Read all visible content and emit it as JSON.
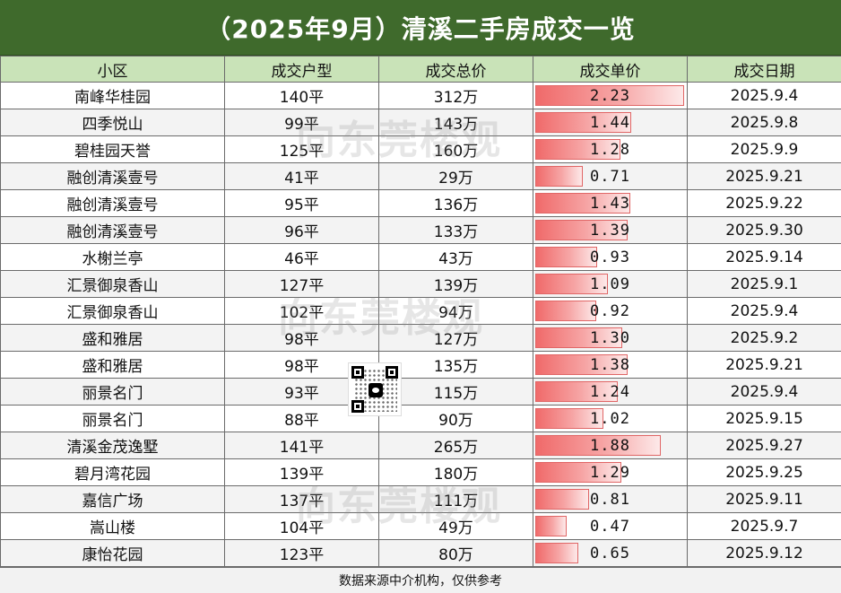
{
  "title": "（2025年9月）清溪二手房成交一览",
  "headers": [
    "小区",
    "成交户型",
    "成交总价",
    "成交单价",
    "成交日期"
  ],
  "unit_scale_max": 2.23,
  "rows": [
    {
      "community": "南峰华桂园",
      "size": "140平",
      "total": "312万",
      "unit": "2.23",
      "unit_num": 2.23,
      "date": "2025.9.4"
    },
    {
      "community": "四季悦山",
      "size": "99平",
      "total": "143万",
      "unit": "1.44",
      "unit_num": 1.44,
      "date": "2025.9.8"
    },
    {
      "community": "碧桂园天誉",
      "size": "125平",
      "total": "160万",
      "unit": "1.28",
      "unit_num": 1.28,
      "date": "2025.9.9"
    },
    {
      "community": "融创清溪壹号",
      "size": "41平",
      "total": "29万",
      "unit": "0.71",
      "unit_num": 0.71,
      "date": "2025.9.21"
    },
    {
      "community": "融创清溪壹号",
      "size": "95平",
      "total": "136万",
      "unit": "1.43",
      "unit_num": 1.43,
      "date": "2025.9.22"
    },
    {
      "community": "融创清溪壹号",
      "size": "96平",
      "total": "133万",
      "unit": "1.39",
      "unit_num": 1.39,
      "date": "2025.9.30"
    },
    {
      "community": "水榭兰亭",
      "size": "46平",
      "total": "43万",
      "unit": "0.93",
      "unit_num": 0.93,
      "date": "2025.9.14"
    },
    {
      "community": "汇景御泉香山",
      "size": "127平",
      "total": "139万",
      "unit": "1.09",
      "unit_num": 1.09,
      "date": "2025.9.1"
    },
    {
      "community": "汇景御泉香山",
      "size": "102平",
      "total": "94万",
      "unit": "0.92",
      "unit_num": 0.92,
      "date": "2025.9.4"
    },
    {
      "community": "盛和雅居",
      "size": "98平",
      "total": "127万",
      "unit": "1.30",
      "unit_num": 1.3,
      "date": "2025.9.2"
    },
    {
      "community": "盛和雅居",
      "size": "98平",
      "total": "135万",
      "unit": "1.38",
      "unit_num": 1.38,
      "date": "2025.9.21"
    },
    {
      "community": "丽景名门",
      "size": "93平",
      "total": "115万",
      "unit": "1.24",
      "unit_num": 1.24,
      "date": "2025.9.4"
    },
    {
      "community": "丽景名门",
      "size": "88平",
      "total": "90万",
      "unit": "1.02",
      "unit_num": 1.02,
      "date": "2025.9.15"
    },
    {
      "community": "清溪金茂逸墅",
      "size": "141平",
      "total": "265万",
      "unit": "1.88",
      "unit_num": 1.88,
      "date": "2025.9.27"
    },
    {
      "community": "碧月湾花园",
      "size": "139平",
      "total": "180万",
      "unit": "1.29",
      "unit_num": 1.29,
      "date": "2025.9.25"
    },
    {
      "community": "嘉信广场",
      "size": "137平",
      "total": "111万",
      "unit": "0.81",
      "unit_num": 0.81,
      "date": "2025.9.11"
    },
    {
      "community": "嵩山楼",
      "size": "104平",
      "total": "49万",
      "unit": "0.47",
      "unit_num": 0.47,
      "date": "2025.9.7"
    },
    {
      "community": "康怡花园",
      "size": "123平",
      "total": "80万",
      "unit": "0.65",
      "unit_num": 0.65,
      "date": "2025.9.12"
    }
  ],
  "footer": "数据来源中介机构，仅供参考",
  "watermark": "向东莞楼观",
  "colors": {
    "header_bg": "#3f6a2c",
    "column_header_bg": "#c9e3b8",
    "bar_color": "#f06a6a"
  }
}
